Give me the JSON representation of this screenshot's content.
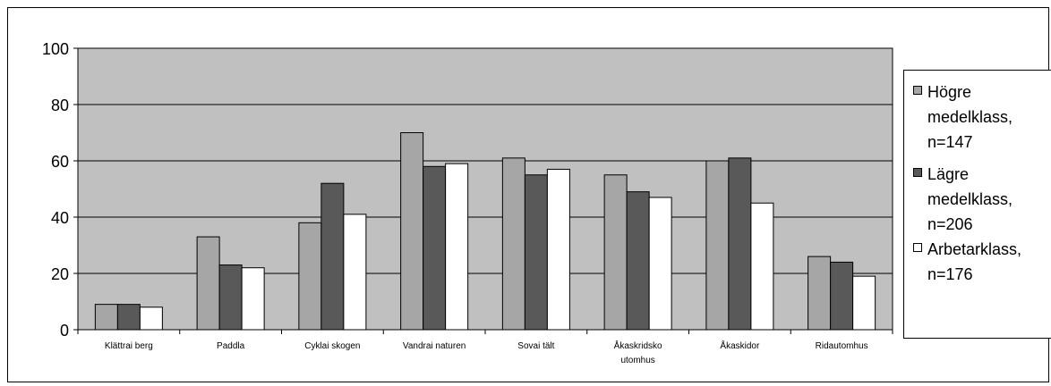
{
  "chart_data": {
    "type": "bar",
    "categories": [
      "Klättra i berg",
      "Paddla",
      "Cykla i skogen",
      "Vandra i naturen",
      "Sova i tält",
      "Åka skridsko utomhus",
      "Åka skidor",
      "Rida utomhus"
    ],
    "category_labels": [
      "Klättrai berg",
      "Paddla",
      "Cyklai skogen",
      "Vandrai naturen",
      "Sovai tält",
      "Åkaskridsko\nutomhus",
      "Åkaskidor",
      "Ridautomhus"
    ],
    "series": [
      {
        "name": "Högre medelklass, n=147",
        "label": "Högre\nmedelklass,\nn=147",
        "color": "#a6a6a6",
        "values": [
          9,
          33,
          38,
          70,
          61,
          55,
          60,
          26
        ]
      },
      {
        "name": "Lägre medelklass, n=206",
        "label": "Lägre\nmedelklass,\nn=206",
        "color": "#595959",
        "values": [
          9,
          23,
          52,
          58,
          55,
          49,
          61,
          24
        ]
      },
      {
        "name": "Arbetarklass, n=176",
        "label": "Arbetarklass,\nn=176",
        "color": "#ffffff",
        "values": [
          8,
          22,
          41,
          59,
          57,
          47,
          45,
          19
        ]
      }
    ],
    "ylim": [
      0,
      100
    ],
    "yticks": [
      "0",
      "20",
      "40",
      "60",
      "80",
      "100"
    ],
    "grid": true,
    "plot_background": "#c0c0c0",
    "legend_position": "right",
    "title": "",
    "xlabel": "",
    "ylabel": ""
  }
}
